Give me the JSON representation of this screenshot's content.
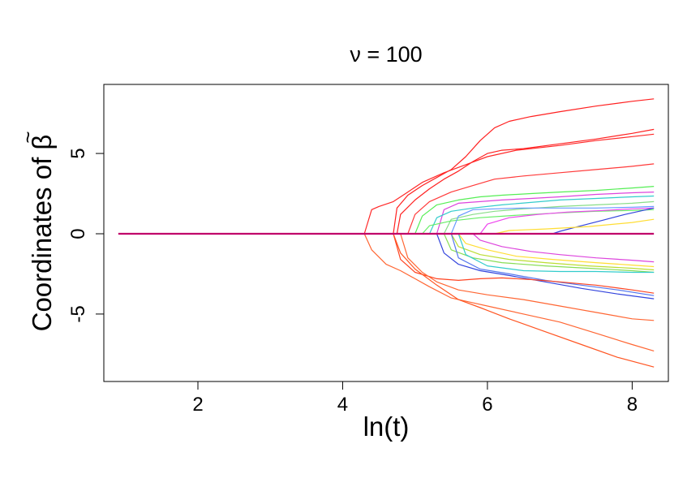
{
  "chart_data": {
    "type": "line",
    "title": "ν = 100",
    "xlabel": "ln(t)",
    "ylabel": "Coordinates of β̃",
    "ylabel_text": "Coordinates of ",
    "ylabel_symbol": "β",
    "ylabel_accent": "~",
    "xlim": [
      0.7,
      8.5
    ],
    "ylim": [
      -9.2,
      9.3
    ],
    "x_ticks": [
      2,
      4,
      6,
      8
    ],
    "y_ticks": [
      -5,
      0,
      5
    ],
    "x_tick_labels": [
      "2",
      "4",
      "6",
      "8"
    ],
    "y_tick_labels": [
      "-5",
      "0",
      "5"
    ],
    "grid": false,
    "baseline": {
      "x": [
        0.9,
        8.3
      ],
      "y": [
        0,
        0
      ],
      "color": "#c0006a"
    },
    "series": [
      {
        "color": "#ff2020",
        "x": [
          4.7,
          4.75,
          4.9,
          5.1,
          5.3,
          5.5,
          5.7,
          5.9,
          6.1,
          6.3,
          6.6,
          7.0,
          7.5,
          8.0,
          8.3
        ],
        "y": [
          0,
          1.6,
          2.4,
          3.0,
          3.5,
          4.0,
          4.8,
          5.8,
          6.6,
          7.0,
          7.3,
          7.6,
          7.95,
          8.25,
          8.4
        ]
      },
      {
        "color": "#ff2020",
        "x": [
          4.75,
          4.8,
          5.0,
          5.2,
          5.4,
          5.6,
          5.8,
          6.0,
          6.2,
          6.5,
          7.0,
          7.5,
          8.0,
          8.3
        ],
        "y": [
          0,
          1.2,
          2.1,
          2.8,
          3.4,
          3.9,
          4.5,
          5.0,
          5.2,
          5.3,
          5.6,
          5.9,
          6.25,
          6.5
        ]
      },
      {
        "color": "#ff2828",
        "x": [
          4.3,
          4.4,
          4.5,
          4.7,
          4.9,
          5.1,
          5.4,
          5.7,
          6.0,
          6.4,
          7.0,
          7.5,
          8.0,
          8.3
        ],
        "y": [
          0,
          1.5,
          1.7,
          2.0,
          2.6,
          3.2,
          3.8,
          4.3,
          4.8,
          5.2,
          5.5,
          5.8,
          6.05,
          6.2
        ]
      },
      {
        "color": "#ff3a3a",
        "x": [
          4.9,
          5.0,
          5.2,
          5.5,
          5.8,
          6.1,
          6.5,
          7.0,
          7.5,
          8.0,
          8.3
        ],
        "y": [
          0,
          1.2,
          2.0,
          2.6,
          3.0,
          3.4,
          3.6,
          3.8,
          4.0,
          4.2,
          4.35
        ]
      },
      {
        "color": "#55ee55",
        "x": [
          5.0,
          5.1,
          5.3,
          5.6,
          5.9,
          6.2,
          6.6,
          7.0,
          7.5,
          8.0,
          8.3
        ],
        "y": [
          0,
          1.1,
          1.8,
          2.1,
          2.3,
          2.4,
          2.5,
          2.6,
          2.7,
          2.85,
          2.95
        ]
      },
      {
        "color": "#dd44dd",
        "x": [
          5.3,
          5.4,
          5.6,
          5.9,
          6.2,
          6.6,
          7.0,
          7.5,
          8.0,
          8.3
        ],
        "y": [
          0,
          1.5,
          1.9,
          2.0,
          2.1,
          2.2,
          2.3,
          2.45,
          2.55,
          2.6
        ]
      },
      {
        "color": "#33cccc",
        "x": [
          5.2,
          5.3,
          5.5,
          5.8,
          6.2,
          6.6,
          7.0,
          7.5,
          8.0,
          8.3
        ],
        "y": [
          0,
          1.0,
          1.4,
          1.6,
          1.8,
          1.95,
          2.1,
          2.2,
          2.3,
          2.35
        ]
      },
      {
        "color": "#88dd88",
        "x": [
          5.4,
          5.5,
          5.8,
          6.1,
          6.5,
          7.0,
          7.5,
          8.0,
          8.3
        ],
        "y": [
          0,
          0.9,
          1.2,
          1.4,
          1.55,
          1.7,
          1.8,
          1.9,
          2.0
        ]
      },
      {
        "color": "#66ee66",
        "x": [
          5.1,
          5.2,
          5.5,
          5.9,
          6.4,
          7.0,
          7.5,
          8.0,
          8.3
        ],
        "y": [
          0,
          0.5,
          0.8,
          1.0,
          1.15,
          1.3,
          1.4,
          1.45,
          1.5
        ]
      },
      {
        "color": "#ee44ee",
        "x": [
          5.9,
          6.0,
          6.3,
          6.7,
          7.1,
          7.6,
          8.0,
          8.3
        ],
        "y": [
          0,
          0.6,
          1.0,
          1.2,
          1.35,
          1.45,
          1.55,
          1.6
        ]
      },
      {
        "color": "#3344dd",
        "x": [
          6.9,
          7.0,
          7.3,
          7.6,
          7.9,
          8.3
        ],
        "y": [
          0,
          0.15,
          0.5,
          0.85,
          1.2,
          1.6
        ]
      },
      {
        "color": "#ffdd33",
        "x": [
          6.1,
          6.3,
          6.8,
          7.4,
          8.0,
          8.3
        ],
        "y": [
          0,
          0.2,
          0.3,
          0.45,
          0.7,
          0.9
        ]
      },
      {
        "color": "#6699ff",
        "x": [
          5.5,
          5.6,
          5.8,
          6.1,
          6.5,
          7.0,
          7.5,
          8.0,
          8.3
        ],
        "y": [
          0,
          1.1,
          1.5,
          1.55,
          1.6,
          1.6,
          1.6,
          1.65,
          1.7
        ]
      },
      {
        "color": "#dd44dd",
        "x": [
          5.8,
          5.9,
          6.2,
          6.6,
          7.0,
          7.5,
          8.0,
          8.3
        ],
        "y": [
          0,
          -0.4,
          -0.8,
          -1.1,
          -1.3,
          -1.5,
          -1.65,
          -1.75
        ]
      },
      {
        "color": "#ffdd33",
        "x": [
          5.6,
          5.7,
          6.0,
          6.4,
          6.9,
          7.5,
          8.0,
          8.3
        ],
        "y": [
          0,
          -0.6,
          -1.0,
          -1.4,
          -1.6,
          -1.8,
          -1.95,
          -2.05
        ]
      },
      {
        "color": "#bbdd33",
        "x": [
          5.5,
          5.6,
          5.9,
          6.3,
          6.8,
          7.4,
          8.0,
          8.3
        ],
        "y": [
          0,
          -0.8,
          -1.3,
          -1.6,
          -1.8,
          -2.0,
          -2.15,
          -2.25
        ]
      },
      {
        "color": "#88dd55",
        "x": [
          5.4,
          5.5,
          5.8,
          6.2,
          6.8,
          7.4,
          8.0,
          8.3
        ],
        "y": [
          0,
          -1.0,
          -1.5,
          -1.8,
          -2.0,
          -2.15,
          -2.3,
          -2.4
        ]
      },
      {
        "color": "#33cccc",
        "x": [
          5.6,
          5.7,
          6.0,
          6.5,
          7.0,
          7.5,
          8.0,
          8.3
        ],
        "y": [
          0,
          -1.3,
          -2.0,
          -2.3,
          -2.35,
          -2.35,
          -2.4,
          -2.4
        ]
      },
      {
        "color": "#3344dd",
        "x": [
          5.3,
          5.4,
          5.6,
          5.9,
          6.3,
          6.8,
          7.3,
          7.8,
          8.3
        ],
        "y": [
          0,
          -1.2,
          -1.9,
          -2.3,
          -2.6,
          -3.0,
          -3.4,
          -3.75,
          -4.05
        ]
      },
      {
        "color": "#5577ee",
        "x": [
          5.5,
          5.6,
          5.9,
          6.3,
          6.8,
          7.3,
          7.8,
          8.3
        ],
        "y": [
          0,
          -1.5,
          -2.2,
          -2.5,
          -2.9,
          -3.2,
          -3.5,
          -3.85
        ]
      },
      {
        "color": "#ff4422",
        "x": [
          4.7,
          4.8,
          5.0,
          5.3,
          5.6,
          5.9,
          6.2,
          6.6,
          7.0,
          7.5,
          8.0,
          8.3
        ],
        "y": [
          0,
          -1.6,
          -2.4,
          -2.8,
          -2.9,
          -2.8,
          -2.75,
          -2.85,
          -3.0,
          -3.2,
          -3.5,
          -3.7
        ]
      },
      {
        "color": "#ff6633",
        "x": [
          4.8,
          4.9,
          5.1,
          5.3,
          5.6,
          6.0,
          6.5,
          7.0,
          7.5,
          8.0,
          8.3
        ],
        "y": [
          0,
          -1.5,
          -2.4,
          -3.0,
          -3.5,
          -3.8,
          -4.1,
          -4.5,
          -4.9,
          -5.3,
          -5.4
        ]
      },
      {
        "color": "#ff6633",
        "x": [
          4.3,
          4.4,
          4.6,
          4.8,
          5.0,
          5.2,
          5.5,
          5.8,
          6.1,
          6.5,
          7.0,
          7.5,
          8.0,
          8.3
        ],
        "y": [
          0,
          -1.0,
          -1.9,
          -2.3,
          -2.8,
          -3.3,
          -4.0,
          -4.3,
          -4.6,
          -5.0,
          -5.5,
          -6.2,
          -6.9,
          -7.3
        ]
      },
      {
        "color": "#ff5522",
        "x": [
          4.7,
          4.8,
          5.0,
          5.3,
          5.6,
          5.9,
          6.3,
          6.8,
          7.3,
          7.8,
          8.3
        ],
        "y": [
          0,
          -1.2,
          -2.2,
          -3.2,
          -4.1,
          -4.6,
          -5.3,
          -6.1,
          -6.9,
          -7.7,
          -8.3
        ]
      }
    ]
  }
}
